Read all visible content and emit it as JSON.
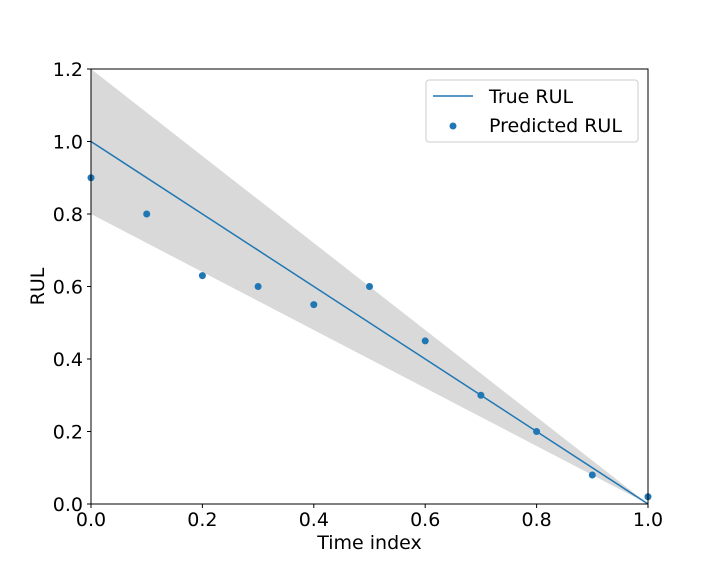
{
  "chart_data": {
    "type": "line",
    "xlabel": "Time index",
    "ylabel": "RUL",
    "xlim": [
      0.0,
      1.0
    ],
    "ylim": [
      0.0,
      1.2
    ],
    "x_ticks": [
      "0.0",
      "0.2",
      "0.4",
      "0.6",
      "0.8",
      "1.0"
    ],
    "y_ticks": [
      "0.0",
      "0.2",
      "0.4",
      "0.6",
      "0.8",
      "1.0",
      "1.2"
    ],
    "grid": false,
    "legend_position": "top-right",
    "colors": {
      "series": "#1f77b4",
      "band": "#d9d9d9"
    },
    "series": [
      {
        "name": "True RUL",
        "kind": "line",
        "x": [
          0.0,
          1.0
        ],
        "y": [
          1.0,
          0.0
        ]
      },
      {
        "name": "Predicted RUL",
        "kind": "scatter",
        "x": [
          0.0,
          0.1,
          0.2,
          0.3,
          0.4,
          0.5,
          0.6,
          0.7,
          0.8,
          0.9,
          1.0
        ],
        "y": [
          0.9,
          0.8,
          0.63,
          0.6,
          0.55,
          0.6,
          0.45,
          0.3,
          0.2,
          0.08,
          0.02
        ]
      }
    ],
    "band": {
      "x": [
        0.0,
        1.0
      ],
      "upper": [
        1.2,
        0.0
      ],
      "lower": [
        0.8,
        0.0
      ]
    }
  }
}
